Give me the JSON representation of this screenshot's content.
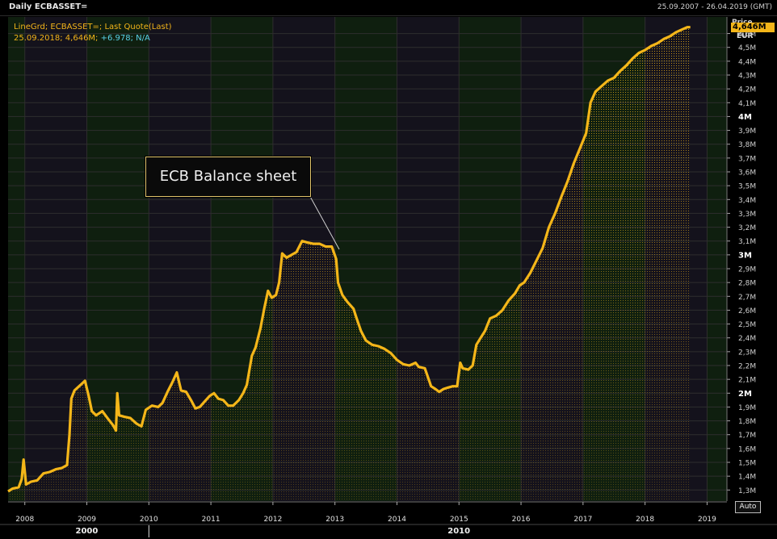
{
  "window": {
    "title": "Daily ECBASSET=",
    "date_range": "25.09.2007 - 26.04.2019 (GMT)"
  },
  "legend": {
    "line1": "LineGrd; ECBASSET=; Last Quote(Last)",
    "line2_prefix": "25.09.2018; 4,646M;",
    "line2_change": "+6.978; N/A"
  },
  "annotation": "ECB Balance sheet",
  "axis": {
    "price_label": "Price",
    "last_value": "4,646M",
    "unit": "EUR",
    "auto_button": "Auto",
    "era_labels": [
      {
        "text": "2000",
        "year": 2009.0
      },
      {
        "text": "2010",
        "year": 2015.0
      }
    ]
  },
  "colors": {
    "line": "#f4b619",
    "background": "#000000",
    "band_green": "#0f1f0f",
    "band_dark": "#14121c",
    "grid": "#2e2e2e",
    "change_text": "#5ad1e8"
  },
  "chart_data": {
    "type": "area",
    "title": "Daily ECBASSET=",
    "xlabel": "",
    "ylabel": "EUR",
    "xlim": [
      2007.73,
      2019.32
    ],
    "ylim": [
      1.22,
      4.72
    ],
    "grid": true,
    "x_ticks": [
      "2008",
      "2009",
      "2010",
      "2011",
      "2012",
      "2013",
      "2014",
      "2015",
      "2016",
      "2017",
      "2018",
      "2019"
    ],
    "y_ticks": [
      {
        "v": 1.3,
        "label": "1,3M"
      },
      {
        "v": 1.4,
        "label": "1,4M"
      },
      {
        "v": 1.5,
        "label": "1,5M"
      },
      {
        "v": 1.6,
        "label": "1,6M"
      },
      {
        "v": 1.7,
        "label": "1,7M"
      },
      {
        "v": 1.8,
        "label": "1,8M"
      },
      {
        "v": 1.9,
        "label": "1,9M"
      },
      {
        "v": 2.0,
        "label": "2M"
      },
      {
        "v": 2.1,
        "label": "2,1M"
      },
      {
        "v": 2.2,
        "label": "2,2M"
      },
      {
        "v": 2.3,
        "label": "2,3M"
      },
      {
        "v": 2.4,
        "label": "2,4M"
      },
      {
        "v": 2.5,
        "label": "2,5M"
      },
      {
        "v": 2.6,
        "label": "2,6M"
      },
      {
        "v": 2.7,
        "label": "2,7M"
      },
      {
        "v": 2.8,
        "label": "2,8M"
      },
      {
        "v": 2.9,
        "label": "2,9M"
      },
      {
        "v": 3.0,
        "label": "3M"
      },
      {
        "v": 3.1,
        "label": "3,1M"
      },
      {
        "v": 3.2,
        "label": "3,2M"
      },
      {
        "v": 3.3,
        "label": "3,3M"
      },
      {
        "v": 3.4,
        "label": "3,4M"
      },
      {
        "v": 3.5,
        "label": "3,5M"
      },
      {
        "v": 3.6,
        "label": "3,6M"
      },
      {
        "v": 3.7,
        "label": "3,7M"
      },
      {
        "v": 3.8,
        "label": "3,8M"
      },
      {
        "v": 3.9,
        "label": "3,9M"
      },
      {
        "v": 4.0,
        "label": "4M"
      },
      {
        "v": 4.1,
        "label": "4,1M"
      },
      {
        "v": 4.2,
        "label": "4,2M"
      },
      {
        "v": 4.3,
        "label": "4,3M"
      },
      {
        "v": 4.4,
        "label": "4,4M"
      },
      {
        "v": 4.5,
        "label": "4,5M"
      },
      {
        "v": 4.6,
        "label": "4,6M"
      }
    ],
    "series": [
      {
        "name": "ECBASSET=",
        "points": [
          [
            2007.73,
            1.29
          ],
          [
            2007.8,
            1.31
          ],
          [
            2007.9,
            1.32
          ],
          [
            2007.95,
            1.38
          ],
          [
            2007.98,
            1.52
          ],
          [
            2008.02,
            1.34
          ],
          [
            2008.1,
            1.36
          ],
          [
            2008.2,
            1.37
          ],
          [
            2008.3,
            1.42
          ],
          [
            2008.4,
            1.43
          ],
          [
            2008.5,
            1.45
          ],
          [
            2008.6,
            1.46
          ],
          [
            2008.68,
            1.48
          ],
          [
            2008.72,
            1.7
          ],
          [
            2008.75,
            1.96
          ],
          [
            2008.8,
            2.02
          ],
          [
            2008.85,
            2.04
          ],
          [
            2008.9,
            2.06
          ],
          [
            2008.97,
            2.09
          ],
          [
            2009.03,
            1.98
          ],
          [
            2009.08,
            1.87
          ],
          [
            2009.15,
            1.84
          ],
          [
            2009.25,
            1.87
          ],
          [
            2009.35,
            1.81
          ],
          [
            2009.42,
            1.77
          ],
          [
            2009.47,
            1.73
          ],
          [
            2009.49,
            2.0
          ],
          [
            2009.52,
            1.84
          ],
          [
            2009.6,
            1.83
          ],
          [
            2009.7,
            1.82
          ],
          [
            2009.8,
            1.78
          ],
          [
            2009.88,
            1.76
          ],
          [
            2009.95,
            1.88
          ],
          [
            2010.05,
            1.91
          ],
          [
            2010.15,
            1.9
          ],
          [
            2010.22,
            1.93
          ],
          [
            2010.3,
            2.01
          ],
          [
            2010.38,
            2.08
          ],
          [
            2010.45,
            2.15
          ],
          [
            2010.52,
            2.02
          ],
          [
            2010.6,
            2.01
          ],
          [
            2010.68,
            1.95
          ],
          [
            2010.75,
            1.89
          ],
          [
            2010.82,
            1.9
          ],
          [
            2010.9,
            1.94
          ],
          [
            2010.98,
            1.98
          ],
          [
            2011.05,
            2.0
          ],
          [
            2011.12,
            1.96
          ],
          [
            2011.2,
            1.95
          ],
          [
            2011.28,
            1.91
          ],
          [
            2011.36,
            1.91
          ],
          [
            2011.45,
            1.95
          ],
          [
            2011.52,
            2.0
          ],
          [
            2011.58,
            2.06
          ],
          [
            2011.66,
            2.27
          ],
          [
            2011.72,
            2.33
          ],
          [
            2011.8,
            2.47
          ],
          [
            2011.86,
            2.61
          ],
          [
            2011.92,
            2.74
          ],
          [
            2011.98,
            2.69
          ],
          [
            2012.05,
            2.71
          ],
          [
            2012.1,
            2.8
          ],
          [
            2012.15,
            3.01
          ],
          [
            2012.22,
            2.98
          ],
          [
            2012.3,
            3.0
          ],
          [
            2012.38,
            3.02
          ],
          [
            2012.47,
            3.1
          ],
          [
            2012.55,
            3.09
          ],
          [
            2012.65,
            3.08
          ],
          [
            2012.75,
            3.08
          ],
          [
            2012.85,
            3.06
          ],
          [
            2012.95,
            3.06
          ],
          [
            2013.02,
            2.97
          ],
          [
            2013.05,
            2.8
          ],
          [
            2013.12,
            2.71
          ],
          [
            2013.2,
            2.66
          ],
          [
            2013.3,
            2.61
          ],
          [
            2013.35,
            2.54
          ],
          [
            2013.42,
            2.45
          ],
          [
            2013.5,
            2.38
          ],
          [
            2013.6,
            2.35
          ],
          [
            2013.7,
            2.34
          ],
          [
            2013.8,
            2.32
          ],
          [
            2013.9,
            2.29
          ],
          [
            2014.0,
            2.24
          ],
          [
            2014.1,
            2.21
          ],
          [
            2014.2,
            2.2
          ],
          [
            2014.3,
            2.22
          ],
          [
            2014.35,
            2.19
          ],
          [
            2014.45,
            2.18
          ],
          [
            2014.55,
            2.05
          ],
          [
            2014.62,
            2.03
          ],
          [
            2014.68,
            2.01
          ],
          [
            2014.75,
            2.03
          ],
          [
            2014.82,
            2.04
          ],
          [
            2014.9,
            2.05
          ],
          [
            2014.97,
            2.05
          ],
          [
            2015.02,
            2.22
          ],
          [
            2015.06,
            2.18
          ],
          [
            2015.15,
            2.17
          ],
          [
            2015.22,
            2.2
          ],
          [
            2015.28,
            2.35
          ],
          [
            2015.35,
            2.4
          ],
          [
            2015.42,
            2.45
          ],
          [
            2015.5,
            2.54
          ],
          [
            2015.6,
            2.56
          ],
          [
            2015.7,
            2.6
          ],
          [
            2015.8,
            2.67
          ],
          [
            2015.9,
            2.72
          ],
          [
            2015.98,
            2.78
          ],
          [
            2016.05,
            2.8
          ],
          [
            2016.15,
            2.87
          ],
          [
            2016.25,
            2.96
          ],
          [
            2016.35,
            3.05
          ],
          [
            2016.45,
            3.2
          ],
          [
            2016.55,
            3.3
          ],
          [
            2016.65,
            3.42
          ],
          [
            2016.75,
            3.53
          ],
          [
            2016.85,
            3.66
          ],
          [
            2016.95,
            3.77
          ],
          [
            2017.05,
            3.88
          ],
          [
            2017.12,
            4.1
          ],
          [
            2017.2,
            4.18
          ],
          [
            2017.3,
            4.22
          ],
          [
            2017.4,
            4.26
          ],
          [
            2017.5,
            4.28
          ],
          [
            2017.6,
            4.33
          ],
          [
            2017.7,
            4.37
          ],
          [
            2017.8,
            4.42
          ],
          [
            2017.9,
            4.46
          ],
          [
            2018.0,
            4.48
          ],
          [
            2018.1,
            4.51
          ],
          [
            2018.2,
            4.53
          ],
          [
            2018.3,
            4.56
          ],
          [
            2018.4,
            4.58
          ],
          [
            2018.5,
            4.61
          ],
          [
            2018.6,
            4.63
          ],
          [
            2018.68,
            4.646
          ],
          [
            2018.73,
            4.646
          ]
        ]
      }
    ]
  }
}
